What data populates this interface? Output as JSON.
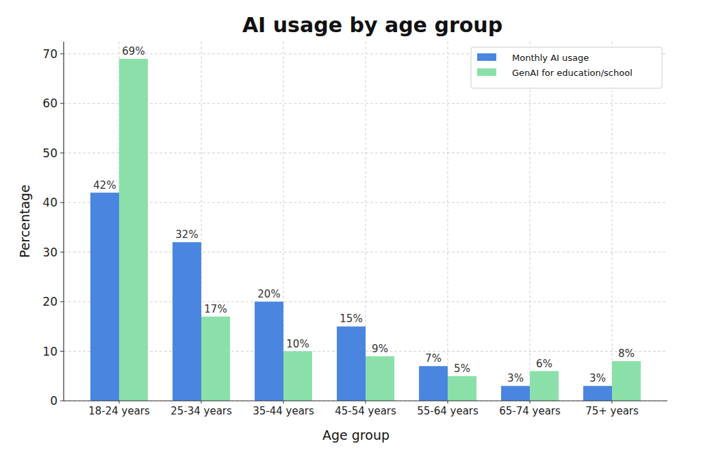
{
  "chart_data": {
    "type": "bar",
    "title": "AI usage by age group",
    "x_label": "Age group",
    "y_label": "Percentage",
    "categories": [
      "18-24 years",
      "25-34 years",
      "35-44 years",
      "45-54 years",
      "55-64 years",
      "65-74 years",
      "75+ years"
    ],
    "series": [
      {
        "name": "Monthly AI usage",
        "color": "#4a86e0",
        "values": [
          42,
          32,
          20,
          15,
          7,
          3,
          3
        ],
        "value_labels": [
          "42%",
          "32%",
          "20%",
          "15%",
          "7%",
          "3%",
          "3%"
        ]
      },
      {
        "name": "GenAI for education/school",
        "color": "#8be0aa",
        "values": [
          69,
          17,
          10,
          9,
          5,
          6,
          8
        ],
        "value_labels": [
          "69%",
          "17%",
          "10%",
          "9%",
          "5%",
          "6%",
          "8%"
        ]
      }
    ],
    "ylim": [
      0,
      72.45
    ],
    "yticks": [
      0,
      10,
      20,
      30,
      40,
      50,
      60,
      70
    ],
    "grid": true,
    "legend": "upper right",
    "data_labels": true
  }
}
